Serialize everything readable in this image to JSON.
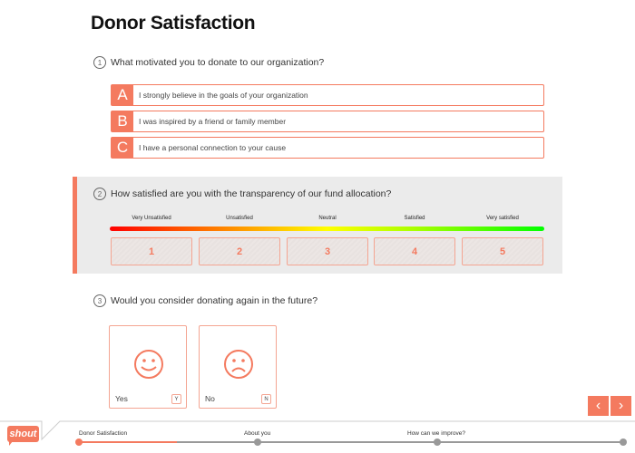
{
  "title": "Donor Satisfaction",
  "q1": {
    "num": "1",
    "text": "What motivated you to donate to our organization?",
    "options": [
      {
        "letter": "A",
        "label": "I strongly believe in the goals of your organization"
      },
      {
        "letter": "B",
        "label": "I was inspired by a friend or family member"
      },
      {
        "letter": "C",
        "label": "I have a personal connection to your cause"
      }
    ]
  },
  "q2": {
    "num": "2",
    "text": "How satisfied are you with the transparency of our fund allocation?",
    "scale_labels": [
      "Very Unsatisfied",
      "Unsatisfied",
      "Neutral",
      "Satisfied",
      "Very satisfied"
    ],
    "ratings": [
      "1",
      "2",
      "3",
      "4",
      "5"
    ]
  },
  "q3": {
    "num": "3",
    "text": "Would you consider donating again in the future?",
    "yes": {
      "label": "Yes",
      "key": "Y"
    },
    "no": {
      "label": "No",
      "key": "N"
    }
  },
  "footer": {
    "logo": "shout",
    "steps": [
      "Donor Satisfaction",
      "About you",
      "How can we improve?"
    ],
    "progress_fraction": 0.18
  },
  "colors": {
    "accent": "#f47a5f",
    "panel": "#ebebeb"
  }
}
